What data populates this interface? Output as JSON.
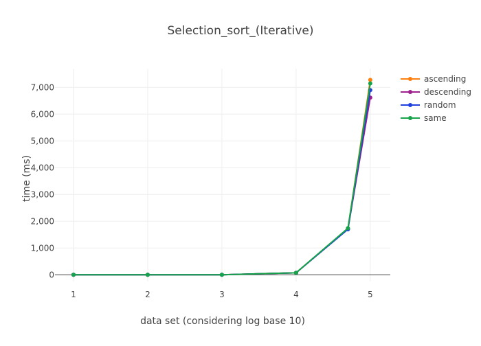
{
  "chart_data": {
    "type": "line",
    "title": "Selection_sort_(Iterative)",
    "xlabel": "data set (considering log base 10)",
    "ylabel": "time (ms)",
    "xlim": [
      0.75,
      5.27
    ],
    "ylim": [
      -250,
      7700
    ],
    "x_ticks": [
      1,
      2,
      3,
      4,
      5
    ],
    "x_tick_labels": [
      "1",
      "2",
      "3",
      "4",
      "5"
    ],
    "y_ticks": [
      0,
      1000,
      2000,
      3000,
      4000,
      5000,
      6000,
      7000
    ],
    "y_tick_labels": [
      "0",
      "1,000",
      "2,000",
      "3,000",
      "4,000",
      "5,000",
      "6,000",
      "7,000"
    ],
    "grid": true,
    "legend_position": "top-right",
    "x": [
      1,
      2,
      3,
      4,
      4.699,
      5
    ],
    "series": [
      {
        "name": "ascending",
        "color": "#ff7f0e",
        "values": [
          0,
          0,
          0,
          75,
          1720,
          7280
        ]
      },
      {
        "name": "descending",
        "color": "#9e1f8e",
        "values": [
          0,
          0,
          0,
          75,
          1710,
          6620
        ]
      },
      {
        "name": "random",
        "color": "#1f3fe0",
        "values": [
          0,
          0,
          0,
          75,
          1700,
          6900
        ]
      },
      {
        "name": "same",
        "color": "#16a34a",
        "values": [
          0,
          0,
          0,
          75,
          1740,
          7150
        ]
      }
    ]
  }
}
